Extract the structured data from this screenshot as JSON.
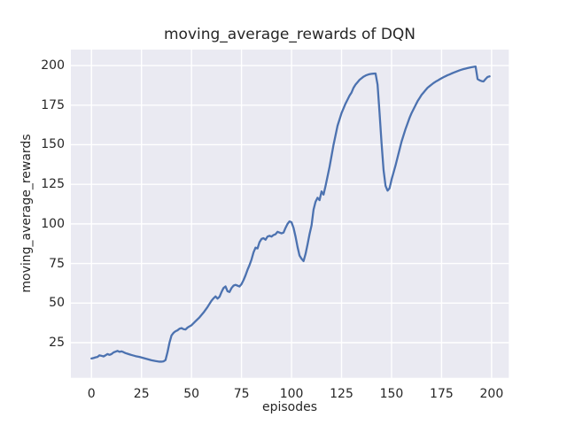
{
  "chart_data": {
    "type": "line",
    "title": "moving_average_rewards of DQN",
    "xlabel": "episodes",
    "ylabel": "moving_average_rewards",
    "x_ticks": [
      0,
      25,
      50,
      75,
      100,
      125,
      150,
      175,
      200
    ],
    "y_ticks": [
      25,
      50,
      75,
      100,
      125,
      150,
      175,
      200
    ],
    "xlim": [
      -10.3,
      208.6
    ],
    "ylim": [
      2.8,
      210.1
    ],
    "grid": true,
    "legend": "none",
    "colors": {
      "line": "#4c72b0",
      "panel_bg": "#eaeaf2",
      "grid": "#ffffff",
      "text": "#262626",
      "figure_bg": "#ffffff"
    },
    "series": [
      {
        "name": "moving_average_rewards",
        "points": [
          [
            0,
            15
          ],
          [
            1,
            15.3
          ],
          [
            2,
            15.7
          ],
          [
            3,
            16
          ],
          [
            4,
            17
          ],
          [
            5,
            16.7
          ],
          [
            6,
            16.3
          ],
          [
            7,
            17
          ],
          [
            8,
            17.8
          ],
          [
            9,
            17.3
          ],
          [
            10,
            17.8
          ],
          [
            11,
            18.8
          ],
          [
            12,
            19.3
          ],
          [
            13,
            19.8
          ],
          [
            14,
            19.2
          ],
          [
            15,
            19.5
          ],
          [
            16,
            19
          ],
          [
            17,
            18.4
          ],
          [
            18,
            18
          ],
          [
            19,
            17.6
          ],
          [
            20,
            17.2
          ],
          [
            22,
            16.5
          ],
          [
            24,
            16
          ],
          [
            26,
            15.3
          ],
          [
            28,
            14.6
          ],
          [
            30,
            13.9
          ],
          [
            32,
            13.4
          ],
          [
            34,
            13
          ],
          [
            35,
            13
          ],
          [
            36,
            13.2
          ],
          [
            37,
            14
          ],
          [
            38,
            19
          ],
          [
            39,
            25
          ],
          [
            40,
            29.5
          ],
          [
            41,
            31.2
          ],
          [
            42,
            32.2
          ],
          [
            43,
            32.8
          ],
          [
            44,
            33.8
          ],
          [
            45,
            34.2
          ],
          [
            46,
            33.5
          ],
          [
            47,
            33.3
          ],
          [
            48,
            34.5
          ],
          [
            49,
            35.3
          ],
          [
            50,
            36
          ],
          [
            52,
            38.5
          ],
          [
            54,
            41
          ],
          [
            56,
            44
          ],
          [
            58,
            47.5
          ],
          [
            59,
            49.5
          ],
          [
            60,
            51.5
          ],
          [
            61,
            53
          ],
          [
            62,
            54.2
          ],
          [
            63,
            52.8
          ],
          [
            64,
            54
          ],
          [
            65,
            57
          ],
          [
            66,
            59.5
          ],
          [
            67,
            60.5
          ],
          [
            68,
            57.5
          ],
          [
            69,
            57
          ],
          [
            70,
            59.5
          ],
          [
            71,
            61
          ],
          [
            72,
            61.5
          ],
          [
            73,
            61
          ],
          [
            74,
            60.5
          ],
          [
            75,
            62
          ],
          [
            76,
            64.5
          ],
          [
            77,
            67.5
          ],
          [
            78,
            71
          ],
          [
            79,
            74
          ],
          [
            80,
            77.5
          ],
          [
            81,
            82
          ],
          [
            82,
            85
          ],
          [
            83,
            84.5
          ],
          [
            84,
            88.5
          ],
          [
            85,
            90.5
          ],
          [
            86,
            91
          ],
          [
            87,
            90
          ],
          [
            88,
            92
          ],
          [
            89,
            92.5
          ],
          [
            90,
            92
          ],
          [
            91,
            93
          ],
          [
            92,
            93.5
          ],
          [
            93,
            95
          ],
          [
            94,
            94.5
          ],
          [
            95,
            94
          ],
          [
            96,
            94.5
          ],
          [
            97,
            97.5
          ],
          [
            98,
            100
          ],
          [
            99,
            101.6
          ],
          [
            100,
            101
          ],
          [
            101,
            97.5
          ],
          [
            102,
            92
          ],
          [
            103,
            85.5
          ],
          [
            104,
            80
          ],
          [
            105,
            78
          ],
          [
            106,
            76.5
          ],
          [
            107,
            81
          ],
          [
            108,
            87
          ],
          [
            109,
            93.5
          ],
          [
            110,
            99
          ],
          [
            111,
            109
          ],
          [
            112,
            114
          ],
          [
            113,
            116.5
          ],
          [
            114,
            115
          ],
          [
            115,
            120.5
          ],
          [
            116,
            118.5
          ],
          [
            117,
            124
          ],
          [
            118,
            130
          ],
          [
            119,
            136
          ],
          [
            120,
            143
          ],
          [
            121,
            150
          ],
          [
            122,
            156
          ],
          [
            123,
            162
          ],
          [
            124,
            166
          ],
          [
            125,
            170
          ],
          [
            126,
            173
          ],
          [
            127,
            176
          ],
          [
            128,
            178.5
          ],
          [
            129,
            181
          ],
          [
            130,
            183
          ],
          [
            131,
            186
          ],
          [
            132,
            188
          ],
          [
            133,
            189.5
          ],
          [
            134,
            191
          ],
          [
            135,
            192
          ],
          [
            136,
            193
          ],
          [
            137,
            193.7
          ],
          [
            138,
            194.2
          ],
          [
            139,
            194.6
          ],
          [
            140,
            194.8
          ],
          [
            141,
            194.9
          ],
          [
            142,
            195
          ],
          [
            143,
            188
          ],
          [
            144,
            170
          ],
          [
            145,
            151
          ],
          [
            146,
            134
          ],
          [
            147,
            124
          ],
          [
            148,
            121
          ],
          [
            149,
            122.5
          ],
          [
            150,
            128
          ],
          [
            151,
            132.5
          ],
          [
            152,
            137
          ],
          [
            153,
            142
          ],
          [
            154,
            147
          ],
          [
            155,
            152
          ],
          [
            156,
            156
          ],
          [
            157,
            160
          ],
          [
            158,
            163.5
          ],
          [
            159,
            167
          ],
          [
            160,
            170
          ],
          [
            161,
            172.5
          ],
          [
            162,
            175
          ],
          [
            163,
            177.5
          ],
          [
            164,
            179.5
          ],
          [
            165,
            181.5
          ],
          [
            166,
            183
          ],
          [
            167,
            184.5
          ],
          [
            168,
            186
          ],
          [
            169,
            187
          ],
          [
            170,
            188
          ],
          [
            171,
            189
          ],
          [
            172,
            189.8
          ],
          [
            173,
            190.5
          ],
          [
            174,
            191.3
          ],
          [
            175,
            192
          ],
          [
            176,
            192.7
          ],
          [
            177,
            193.3
          ],
          [
            178,
            193.9
          ],
          [
            179,
            194.4
          ],
          [
            180,
            195
          ],
          [
            181,
            195.5
          ],
          [
            182,
            196
          ],
          [
            183,
            196.5
          ],
          [
            184,
            197
          ],
          [
            185,
            197.4
          ],
          [
            186,
            197.8
          ],
          [
            187,
            198.1
          ],
          [
            188,
            198.4
          ],
          [
            189,
            198.7
          ],
          [
            190,
            199
          ],
          [
            191,
            199.2
          ],
          [
            192,
            199.4
          ],
          [
            193,
            191.5
          ],
          [
            194,
            190.7
          ],
          [
            195,
            190.2
          ],
          [
            196,
            190
          ],
          [
            197,
            191.5
          ],
          [
            198,
            192.8
          ],
          [
            199,
            193.2
          ]
        ]
      }
    ]
  }
}
